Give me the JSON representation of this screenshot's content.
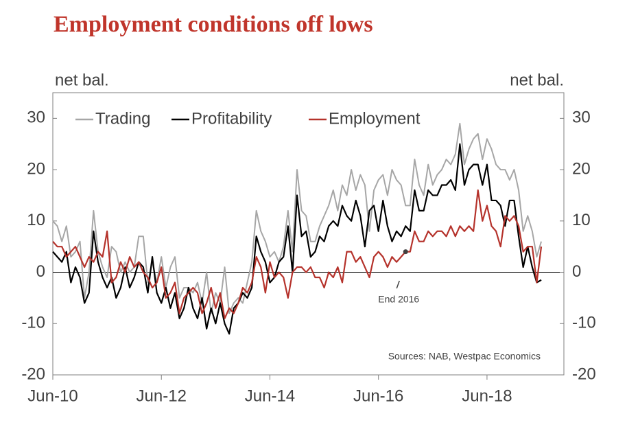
{
  "chart_data": {
    "type": "line",
    "title": "Employment conditions off lows",
    "y_label": "net bal.",
    "y2_label": "net bal.",
    "source": "Sources: NAB, Westpac Economics",
    "annotation": {
      "text": "End 2016",
      "series": 2,
      "index": 78
    },
    "categories": [
      "Jun-10",
      null,
      null,
      null,
      null,
      null,
      null,
      null,
      null,
      null,
      null,
      null,
      null,
      null,
      null,
      null,
      null,
      null,
      null,
      null,
      null,
      null,
      null,
      null,
      "Jun-12",
      null,
      null,
      null,
      null,
      null,
      null,
      null,
      null,
      null,
      null,
      null,
      null,
      null,
      null,
      null,
      null,
      null,
      null,
      null,
      null,
      null,
      null,
      null,
      "Jun-14",
      null,
      null,
      null,
      null,
      null,
      null,
      null,
      null,
      null,
      null,
      null,
      null,
      null,
      null,
      null,
      null,
      null,
      null,
      null,
      null,
      null,
      null,
      null,
      "Jun-16",
      null,
      null,
      null,
      null,
      null,
      null,
      null,
      null,
      null,
      null,
      null,
      null,
      null,
      null,
      null,
      null,
      null,
      null,
      null,
      null,
      null,
      null,
      null,
      "Jun-18",
      null,
      null,
      null,
      null,
      null,
      null,
      null,
      null,
      null,
      null,
      null,
      null
    ],
    "series": [
      {
        "name": "Trading",
        "color": "#a6a6a6",
        "values": [
          10,
          9,
          6,
          9,
          3,
          4,
          6,
          -5,
          0,
          12,
          4,
          1,
          -1,
          5,
          4,
          0,
          2,
          0,
          1,
          7,
          7,
          -2,
          2,
          -2,
          3,
          -3,
          1,
          3,
          -5,
          -3,
          -3,
          -4,
          -2,
          -6,
          0,
          -8,
          -4,
          -6,
          1,
          -8,
          -6,
          -5,
          -6,
          -2,
          2,
          12,
          8,
          6,
          3,
          4,
          2,
          5,
          12,
          4,
          20,
          12,
          11,
          6,
          6,
          9,
          11,
          13,
          16,
          12,
          17,
          15,
          20,
          16,
          19,
          17,
          8,
          16,
          18,
          19,
          15,
          20,
          18,
          17,
          13,
          13,
          22,
          17,
          15,
          21,
          17,
          19,
          20,
          22,
          21,
          23,
          29,
          21,
          24,
          26,
          27,
          22,
          26,
          24,
          21,
          20,
          20,
          18,
          20,
          16,
          8,
          11,
          8,
          3,
          6
        ]
      },
      {
        "name": "Profitability",
        "color": "#000000",
        "values": [
          4,
          3,
          2,
          4,
          -2,
          1,
          -1,
          -6,
          -4,
          8,
          2,
          -1,
          -3,
          -1,
          -5,
          -3,
          1,
          -3,
          -1,
          2,
          1,
          -4,
          3,
          -4,
          -6,
          -3,
          -7,
          -4,
          -9,
          -7,
          -3,
          -7,
          -9,
          -5,
          -11,
          -7,
          -10,
          -6,
          -10,
          -12,
          -7,
          -6,
          -4,
          -5,
          -3,
          7,
          4,
          2,
          -2,
          -1,
          2,
          3,
          9,
          0,
          15,
          7,
          8,
          3,
          4,
          7,
          6,
          9,
          10,
          9,
          13,
          11,
          10,
          14,
          11,
          5,
          12,
          13,
          8,
          14,
          9,
          6,
          8,
          7,
          9,
          8,
          16,
          12,
          12,
          16,
          15,
          15,
          17,
          17,
          18,
          16,
          25,
          17,
          20,
          21,
          21,
          17,
          21,
          14,
          14,
          13,
          9,
          14,
          14,
          7,
          1,
          5,
          1,
          -2,
          -1.5
        ]
      },
      {
        "name": "Employment",
        "color": "#b5322b",
        "values": [
          6,
          5,
          5,
          3,
          4,
          5,
          3,
          1,
          3,
          2,
          4,
          3,
          8,
          -2,
          -1,
          2,
          0,
          3,
          1,
          2,
          0,
          -1,
          -3,
          -2,
          1,
          -5,
          -4,
          -2,
          -8,
          -5,
          -4,
          -3,
          -4,
          -8,
          -6,
          -3,
          -7,
          -4,
          -9,
          -7,
          -8,
          -6,
          -3,
          -4,
          -2,
          3,
          1,
          -4,
          2,
          -1,
          0,
          -1,
          -5,
          0,
          1,
          1,
          0,
          1,
          -1,
          -1,
          -3,
          0,
          -1,
          1,
          -2,
          4,
          4,
          2,
          3,
          1,
          -1,
          3,
          4,
          3,
          1,
          3,
          2,
          3,
          4,
          4,
          8,
          6,
          6,
          8,
          7,
          8,
          8,
          7,
          9,
          7,
          9,
          8,
          9,
          8,
          16,
          10,
          13,
          9,
          8,
          5,
          11,
          10,
          11,
          9,
          4,
          5,
          5,
          -2,
          5
        ]
      }
    ],
    "ylim": [
      -20,
      35
    ],
    "yticks": [
      -20,
      -10,
      0,
      10,
      20,
      30
    ],
    "y2lim": [
      -20,
      35
    ],
    "y2ticks": [
      -20,
      -10,
      0,
      10,
      20,
      30
    ]
  }
}
